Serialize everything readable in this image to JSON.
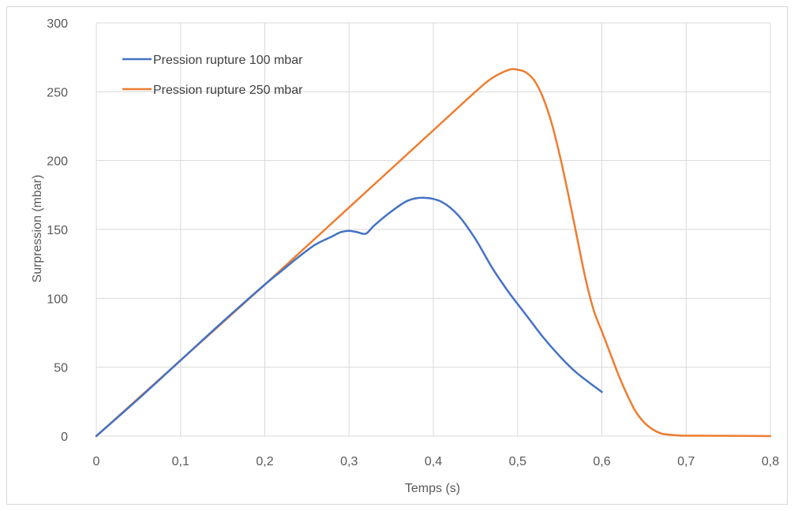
{
  "chart_data": {
    "type": "line",
    "title": "",
    "xlabel": "Temps (s)",
    "ylabel": "Surpression (mbar)",
    "xlim": [
      0,
      0.8
    ],
    "ylim": [
      0,
      300
    ],
    "x_ticks": [
      "0",
      "0,1",
      "0,2",
      "0,3",
      "0,4",
      "0,5",
      "0,6",
      "0,7",
      "0,8"
    ],
    "y_ticks": [
      "0",
      "50",
      "100",
      "150",
      "200",
      "250",
      "300"
    ],
    "grid": true,
    "legend_position": "top-left",
    "series": [
      {
        "name": "Pression rupture 100 mbar",
        "color": "#4472c4",
        "x": [
          0,
          0.05,
          0.1,
          0.15,
          0.2,
          0.22,
          0.24,
          0.26,
          0.28,
          0.29,
          0.3,
          0.31,
          0.32,
          0.33,
          0.35,
          0.37,
          0.39,
          0.41,
          0.43,
          0.45,
          0.47,
          0.49,
          0.51,
          0.53,
          0.55,
          0.57,
          0.6
        ],
        "y": [
          0,
          27,
          55,
          83,
          110,
          120,
          130,
          139,
          145,
          148,
          149,
          148,
          147,
          153,
          163,
          171,
          173,
          170,
          160,
          143,
          122,
          104,
          88,
          72,
          58,
          46,
          32
        ]
      },
      {
        "name": "Pression rupture 250 mbar",
        "color": "#ed7d31",
        "x": [
          0,
          0.1,
          0.2,
          0.3,
          0.4,
          0.45,
          0.47,
          0.49,
          0.5,
          0.51,
          0.52,
          0.53,
          0.54,
          0.55,
          0.56,
          0.57,
          0.58,
          0.59,
          0.6,
          0.61,
          0.62,
          0.63,
          0.64,
          0.65,
          0.66,
          0.67,
          0.68,
          0.69,
          0.7,
          0.75,
          0.8
        ],
        "y": [
          0,
          55,
          110,
          166,
          222,
          250,
          260,
          266,
          266,
          264,
          258,
          246,
          228,
          204,
          176,
          146,
          116,
          92,
          76,
          60,
          44,
          30,
          18,
          10,
          5,
          2,
          1,
          0.5,
          0.3,
          0.2,
          0
        ]
      }
    ]
  }
}
